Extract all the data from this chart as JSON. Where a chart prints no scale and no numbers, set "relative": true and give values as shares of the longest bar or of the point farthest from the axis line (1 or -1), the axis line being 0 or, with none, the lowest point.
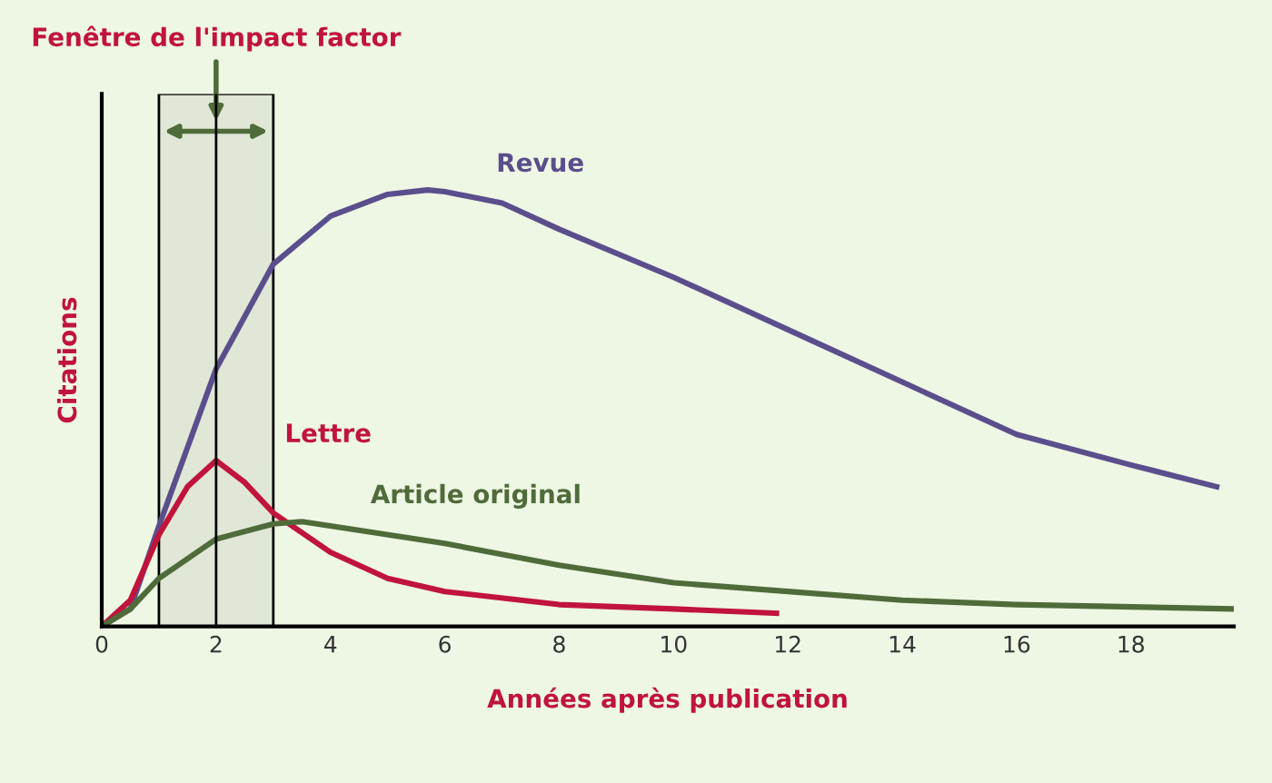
{
  "chart_data": {
    "type": "line",
    "relative": true,
    "xlabel": "Années après publication",
    "ylabel": "Citations",
    "xlim": [
      0,
      19.8
    ],
    "xticks": [
      0,
      2,
      4,
      6,
      8,
      10,
      12,
      14,
      16,
      18
    ],
    "tick_labels": "x",
    "grid": false,
    "legend": false,
    "marker": "none",
    "line_style": "solid",
    "series": [
      {
        "name": "Revue",
        "color": "#5b4e8c",
        "x": [
          0,
          0.5,
          1,
          2,
          3,
          4,
          5,
          5.7,
          6,
          7,
          8,
          10,
          12,
          14,
          16,
          18,
          19.5
        ],
        "values": [
          0,
          0.04,
          0.23,
          0.59,
          0.83,
          0.94,
          0.99,
          1,
          0.996,
          0.97,
          0.91,
          0.8,
          0.68,
          0.56,
          0.44,
          0.37,
          0.32
        ]
      },
      {
        "name": "Lettre",
        "color": "#c0143c",
        "x": [
          0,
          0.5,
          1,
          1.5,
          2,
          2.5,
          3,
          4,
          5,
          6,
          8,
          10,
          11.8
        ],
        "values": [
          0,
          0.06,
          0.21,
          0.32,
          0.38,
          0.33,
          0.26,
          0.17,
          0.11,
          0.08,
          0.05,
          0.04,
          0.03
        ]
      },
      {
        "name": "Article original",
        "color": "#4f6b3a",
        "x": [
          0,
          0.5,
          1,
          2,
          3,
          3.5,
          4,
          6,
          8,
          10,
          12,
          14,
          16,
          19.8
        ],
        "values": [
          0,
          0.04,
          0.11,
          0.2,
          0.235,
          0.24,
          0.23,
          0.19,
          0.14,
          0.1,
          0.08,
          0.06,
          0.05,
          0.04
        ]
      }
    ],
    "bands": [
      {
        "axis": "x",
        "from": 1,
        "to": 3,
        "label": "Fenêtre de l'impact factor",
        "color": "#000000"
      }
    ],
    "ref_lines": [
      {
        "axis": "x",
        "value": 2,
        "label": null,
        "color": "#000000"
      }
    ]
  }
}
